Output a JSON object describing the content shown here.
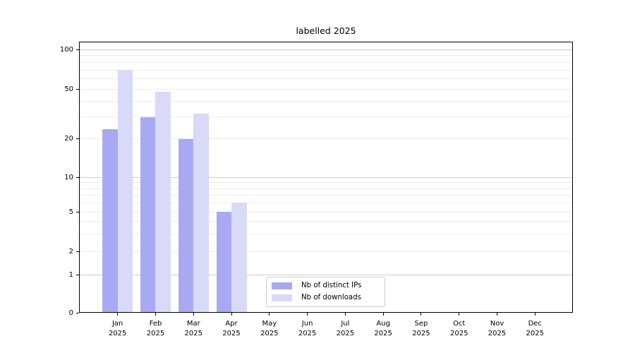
{
  "chart_data": {
    "type": "bar",
    "title": "labelled 2025",
    "categories": [
      "Jan 2025",
      "Feb 2025",
      "Mar 2025",
      "Apr 2025",
      "May 2025",
      "Jun 2025",
      "Jul 2025",
      "Aug 2025",
      "Sep 2025",
      "Oct 2025",
      "Nov 2025",
      "Dec 2025"
    ],
    "months": [
      "Jan",
      "Feb",
      "Mar",
      "Apr",
      "May",
      "Jun",
      "Jul",
      "Aug",
      "Sep",
      "Oct",
      "Nov",
      "Dec"
    ],
    "year": "2025",
    "series": [
      {
        "name": "Nb of distinct IPs",
        "color": "#a9a9f3",
        "values": [
          24,
          30,
          20,
          5,
          0,
          0,
          0,
          0,
          0,
          0,
          0,
          0
        ]
      },
      {
        "name": "Nb of downloads",
        "color": "#d9d9f8",
        "values": [
          70,
          48,
          32,
          6,
          0,
          0,
          0,
          0,
          0,
          0,
          0,
          0
        ]
      }
    ],
    "xlabel": "",
    "ylabel": "",
    "yscale": "symlog",
    "ylim": [
      0,
      112
    ],
    "y_tick_labels": [
      "0",
      "1",
      "2",
      "5",
      "10",
      "20",
      "50",
      "100"
    ],
    "y_tick_values": [
      0,
      1,
      2,
      5,
      10,
      20,
      50,
      100
    ],
    "grid": "on",
    "legend_position": "lower center"
  },
  "colors": {
    "bar_distinct_ips": "#a9a9f3",
    "bar_downloads": "#d9d9f8",
    "grid_major": "#cccccc",
    "grid_minor": "#ebebeb",
    "axis_spine": "#000000",
    "text": "#000000",
    "legend_border": "#cccccc"
  }
}
